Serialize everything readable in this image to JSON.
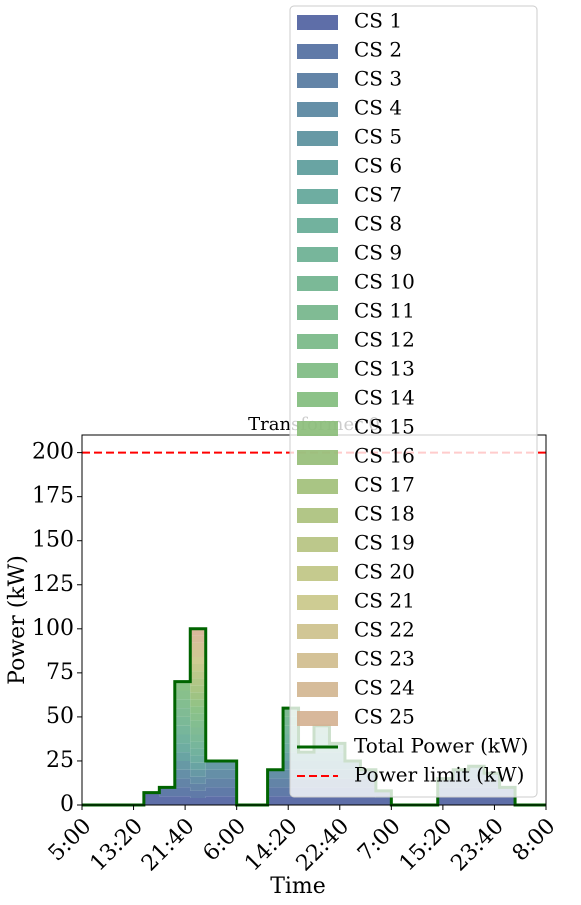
{
  "chart_data": {
    "type": "stacked-step-area",
    "title": "Transformer 0",
    "xlabel": "Time",
    "ylabel": "Power (kW)",
    "x": [
      0,
      150,
      300,
      450,
      600,
      750,
      900,
      1050,
      1200,
      1350,
      1500,
      1650,
      1800,
      1950,
      2100,
      2250,
      2400,
      2550,
      2700,
      2850,
      3000,
      3150,
      3300,
      3450,
      3600,
      3750,
      3900,
      4050,
      4200,
      4350,
      4500
    ],
    "xlim": [
      0,
      4500
    ],
    "xticks": [
      {
        "value": 0,
        "label": "5:00"
      },
      {
        "value": 500,
        "label": "13:20"
      },
      {
        "value": 1000,
        "label": "21:40"
      },
      {
        "value": 1500,
        "label": "6:00"
      },
      {
        "value": 2000,
        "label": "14:20"
      },
      {
        "value": 2500,
        "label": "22:40"
      },
      {
        "value": 3000,
        "label": "7:00"
      },
      {
        "value": 3500,
        "label": "15:20"
      },
      {
        "value": 4000,
        "label": "23:40"
      },
      {
        "value": 4500,
        "label": "8:00"
      }
    ],
    "ylim": [
      0,
      210
    ],
    "yticks": [
      0,
      25,
      50,
      75,
      100,
      125,
      150,
      175,
      200
    ],
    "legend": "upper right",
    "series": [
      {
        "name": "CS 1",
        "color": "#4c5e9e",
        "values": [
          0,
          0,
          0,
          0,
          7,
          5,
          5,
          4,
          5,
          5,
          0,
          0,
          5,
          5,
          5,
          5,
          5,
          5,
          5,
          4,
          0,
          0,
          0,
          5,
          5,
          5,
          5,
          5,
          0,
          0,
          0
        ]
      },
      {
        "name": "CS 2",
        "color": "#4f6c9e",
        "values": [
          0,
          0,
          0,
          0,
          0,
          5,
          5,
          4,
          5,
          5,
          0,
          0,
          5,
          5,
          5,
          5,
          5,
          5,
          5,
          4,
          0,
          0,
          0,
          5,
          5,
          5,
          5,
          5,
          0,
          0,
          0
        ]
      },
      {
        "name": "CS 3",
        "color": "#52779d",
        "values": [
          0,
          0,
          0,
          0,
          0,
          0,
          5,
          4,
          5,
          5,
          0,
          0,
          5,
          5,
          5,
          5,
          5,
          5,
          5,
          0,
          0,
          0,
          0,
          5,
          5,
          5,
          5,
          0,
          0,
          0,
          0
        ]
      },
      {
        "name": "CS 4",
        "color": "#54839d",
        "values": [
          0,
          0,
          0,
          0,
          0,
          0,
          5,
          4,
          5,
          5,
          0,
          0,
          5,
          5,
          5,
          5,
          5,
          5,
          5,
          0,
          0,
          0,
          0,
          0,
          5,
          5,
          3,
          0,
          0,
          0,
          0
        ]
      },
      {
        "name": "CS 5",
        "color": "#568e9b",
        "values": [
          0,
          0,
          0,
          0,
          0,
          0,
          5,
          4,
          5,
          5,
          0,
          0,
          0,
          5,
          5,
          5,
          5,
          5,
          0,
          0,
          0,
          0,
          0,
          0,
          0,
          2,
          0,
          0,
          0,
          0,
          0
        ]
      },
      {
        "name": "CS 6",
        "color": "#599a99",
        "values": [
          0,
          0,
          0,
          0,
          0,
          0,
          5,
          4,
          0,
          0,
          0,
          0,
          0,
          5,
          5,
          5,
          5,
          0,
          0,
          0,
          0,
          0,
          0,
          0,
          0,
          0,
          0,
          0,
          0,
          0,
          0
        ]
      },
      {
        "name": "CS 7",
        "color": "#5ea497",
        "values": [
          0,
          0,
          0,
          0,
          0,
          0,
          5,
          4,
          0,
          0,
          0,
          0,
          0,
          5,
          0,
          5,
          5,
          0,
          0,
          0,
          0,
          0,
          0,
          0,
          0,
          0,
          0,
          0,
          0,
          0,
          0
        ]
      },
      {
        "name": "CS 8",
        "color": "#63aa94",
        "values": [
          0,
          0,
          0,
          0,
          0,
          0,
          5,
          4,
          0,
          0,
          0,
          0,
          0,
          5,
          0,
          5,
          0,
          0,
          0,
          0,
          0,
          0,
          0,
          0,
          0,
          0,
          0,
          0,
          0,
          0,
          0
        ]
      },
      {
        "name": "CS 9",
        "color": "#68ae90",
        "values": [
          0,
          0,
          0,
          0,
          0,
          0,
          5,
          4,
          0,
          0,
          0,
          0,
          0,
          5,
          0,
          5,
          0,
          0,
          0,
          0,
          0,
          0,
          0,
          0,
          0,
          0,
          0,
          0,
          0,
          0,
          0
        ]
      },
      {
        "name": "CS 10",
        "color": "#6db18c",
        "values": [
          0,
          0,
          0,
          0,
          0,
          0,
          5,
          4,
          0,
          0,
          0,
          0,
          0,
          5,
          0,
          0,
          0,
          0,
          0,
          0,
          0,
          0,
          0,
          0,
          0,
          0,
          0,
          0,
          0,
          0,
          0
        ]
      },
      {
        "name": "CS 11",
        "color": "#72b488",
        "values": [
          0,
          0,
          0,
          0,
          0,
          0,
          5,
          4,
          0,
          0,
          0,
          0,
          0,
          5,
          0,
          0,
          0,
          0,
          0,
          0,
          0,
          0,
          0,
          0,
          0,
          0,
          0,
          0,
          0,
          0,
          0
        ]
      },
      {
        "name": "CS 12",
        "color": "#76b784",
        "values": [
          0,
          0,
          0,
          0,
          0,
          0,
          5,
          4,
          0,
          0,
          0,
          0,
          0,
          0,
          0,
          0,
          0,
          0,
          0,
          0,
          0,
          0,
          0,
          0,
          0,
          0,
          0,
          0,
          0,
          0,
          0
        ]
      },
      {
        "name": "CS 13",
        "color": "#7bb97f",
        "values": [
          0,
          0,
          0,
          0,
          0,
          0,
          5,
          4,
          0,
          0,
          0,
          0,
          0,
          0,
          0,
          0,
          0,
          0,
          0,
          0,
          0,
          0,
          0,
          0,
          0,
          0,
          0,
          0,
          0,
          0,
          0
        ]
      },
      {
        "name": "CS 14",
        "color": "#80bb7b",
        "values": [
          0,
          0,
          0,
          0,
          0,
          0,
          5,
          4,
          0,
          0,
          0,
          0,
          0,
          0,
          0,
          0,
          0,
          0,
          0,
          0,
          0,
          0,
          0,
          0,
          0,
          0,
          0,
          0,
          0,
          0,
          0
        ]
      },
      {
        "name": "CS 15",
        "color": "#8abc78",
        "values": [
          0,
          0,
          0,
          0,
          0,
          0,
          0,
          4,
          0,
          0,
          0,
          0,
          0,
          0,
          0,
          0,
          0,
          0,
          0,
          0,
          0,
          0,
          0,
          0,
          0,
          0,
          0,
          0,
          0,
          0,
          0
        ]
      },
      {
        "name": "CS 16",
        "color": "#95bd76",
        "values": [
          0,
          0,
          0,
          0,
          0,
          0,
          0,
          4,
          0,
          0,
          0,
          0,
          0,
          0,
          0,
          0,
          0,
          0,
          0,
          0,
          0,
          0,
          0,
          0,
          0,
          0,
          0,
          0,
          0,
          0,
          0
        ]
      },
      {
        "name": "CS 17",
        "color": "#a0bf77",
        "values": [
          0,
          0,
          0,
          0,
          0,
          0,
          0,
          4,
          0,
          0,
          0,
          0,
          0,
          0,
          0,
          0,
          0,
          0,
          0,
          0,
          0,
          0,
          0,
          0,
          0,
          0,
          0,
          0,
          0,
          0,
          0
        ]
      },
      {
        "name": "CS 18",
        "color": "#aac07a",
        "values": [
          0,
          0,
          0,
          0,
          0,
          0,
          0,
          4,
          0,
          0,
          0,
          0,
          0,
          0,
          0,
          0,
          0,
          0,
          0,
          0,
          0,
          0,
          0,
          0,
          0,
          0,
          0,
          0,
          0,
          0,
          0
        ]
      },
      {
        "name": "CS 19",
        "color": "#b5c27e",
        "values": [
          0,
          0,
          0,
          0,
          0,
          0,
          0,
          4,
          0,
          0,
          0,
          0,
          0,
          0,
          0,
          0,
          0,
          0,
          0,
          0,
          0,
          0,
          0,
          0,
          0,
          0,
          0,
          0,
          0,
          0,
          0
        ]
      },
      {
        "name": "CS 20",
        "color": "#bfc482",
        "values": [
          0,
          0,
          0,
          0,
          0,
          0,
          0,
          4,
          0,
          0,
          0,
          0,
          0,
          0,
          0,
          0,
          0,
          0,
          0,
          0,
          0,
          0,
          0,
          0,
          0,
          0,
          0,
          0,
          0,
          0,
          0
        ]
      },
      {
        "name": "CS 21",
        "color": "#c9c687",
        "values": [
          0,
          0,
          0,
          0,
          0,
          0,
          0,
          4,
          0,
          0,
          0,
          0,
          0,
          0,
          0,
          0,
          0,
          0,
          0,
          0,
          0,
          0,
          0,
          0,
          0,
          0,
          0,
          0,
          0,
          0,
          0
        ]
      },
      {
        "name": "CS 22",
        "color": "#ccc08a",
        "values": [
          0,
          0,
          0,
          0,
          0,
          0,
          0,
          4,
          0,
          0,
          0,
          0,
          0,
          0,
          0,
          0,
          0,
          0,
          0,
          0,
          0,
          0,
          0,
          0,
          0,
          0,
          0,
          0,
          0,
          0,
          0
        ]
      },
      {
        "name": "CS 23",
        "color": "#cfbb8c",
        "values": [
          0,
          0,
          0,
          0,
          0,
          0,
          0,
          4,
          0,
          0,
          0,
          0,
          0,
          0,
          0,
          0,
          0,
          0,
          0,
          0,
          0,
          0,
          0,
          0,
          0,
          0,
          0,
          0,
          0,
          0,
          0
        ]
      },
      {
        "name": "CS 24",
        "color": "#d2b58f",
        "values": [
          0,
          0,
          0,
          0,
          0,
          0,
          0,
          4,
          0,
          0,
          0,
          0,
          0,
          0,
          0,
          0,
          0,
          0,
          0,
          0,
          0,
          0,
          0,
          0,
          0,
          0,
          0,
          0,
          0,
          0,
          0
        ]
      },
      {
        "name": "CS 25",
        "color": "#d4b090",
        "values": [
          0,
          0,
          0,
          0,
          0,
          0,
          0,
          4,
          0,
          0,
          0,
          0,
          0,
          0,
          0,
          0,
          0,
          0,
          0,
          0,
          0,
          0,
          0,
          0,
          0,
          0,
          0,
          0,
          0,
          0,
          0
        ]
      }
    ],
    "lines": [
      {
        "name": "Total Power (kW)",
        "color": "#006400",
        "values": [
          0,
          0,
          0,
          0,
          7,
          10,
          70,
          100,
          25,
          25,
          0,
          0,
          20,
          55,
          30,
          45,
          35,
          25,
          20,
          8,
          0,
          0,
          0,
          15,
          20,
          22,
          18,
          10,
          0,
          0,
          0
        ]
      }
    ],
    "hlines": [
      {
        "name": "Power limit (kW)",
        "color": "#ff0000",
        "value": 200,
        "style": "dashed"
      }
    ]
  }
}
